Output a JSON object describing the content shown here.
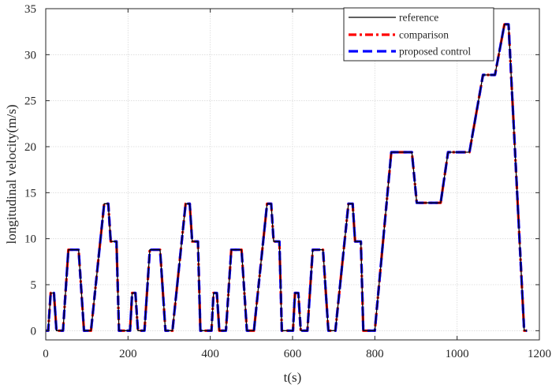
{
  "chart_data": {
    "type": "line",
    "title": "",
    "xlabel": "t(s)",
    "ylabel": "longitudinal velocity(m/s)",
    "xlim": [
      0,
      1200
    ],
    "ylim": [
      -1,
      35
    ],
    "xticks": [
      0,
      200,
      400,
      600,
      800,
      1000,
      1200
    ],
    "yticks": [
      0,
      5,
      10,
      15,
      20,
      25,
      30,
      35
    ],
    "xtick_labels": [
      "0",
      "200",
      "400",
      "600",
      "800",
      "1000",
      "1200"
    ],
    "ytick_labels": [
      "0",
      "5",
      "10",
      "15",
      "20",
      "25",
      "30",
      "35"
    ],
    "grid": true,
    "legend_position": "top-right",
    "x": [
      0,
      6,
      12,
      20,
      26,
      42,
      55,
      58,
      80,
      93,
      110,
      142,
      152,
      158,
      172,
      178,
      188,
      205,
      210,
      218,
      224,
      240,
      253,
      256,
      278,
      291,
      308,
      340,
      350,
      356,
      370,
      376,
      386,
      403,
      408,
      416,
      422,
      438,
      451,
      454,
      476,
      489,
      506,
      538,
      548,
      554,
      568,
      574,
      584,
      601,
      606,
      614,
      620,
      636,
      649,
      652,
      674,
      687,
      704,
      736,
      746,
      752,
      766,
      772,
      782,
      800,
      840,
      842,
      888,
      890,
      902,
      930,
      940,
      960,
      978,
      980,
      1030,
      1063,
      1066,
      1092,
      1115,
      1125,
      1163,
      1170
    ],
    "series": [
      {
        "name": "reference",
        "color": "#000000",
        "dash": "solid",
        "width": 1.3,
        "values": [
          0,
          0,
          4.1,
          4.1,
          0,
          0,
          8.8,
          8.8,
          8.8,
          0,
          0,
          13.8,
          13.8,
          9.7,
          9.7,
          0,
          0,
          0,
          4.1,
          4.1,
          0,
          0,
          8.8,
          8.8,
          8.8,
          0,
          0,
          13.8,
          13.8,
          9.7,
          9.7,
          0,
          0,
          0,
          4.1,
          4.1,
          0,
          0,
          8.8,
          8.8,
          8.8,
          0,
          0,
          13.8,
          13.8,
          9.7,
          9.7,
          0,
          0,
          0,
          4.1,
          4.1,
          0,
          0,
          8.8,
          8.8,
          8.8,
          0,
          0,
          13.8,
          13.8,
          9.7,
          9.7,
          0,
          0,
          0,
          19.4,
          19.4,
          19.4,
          19.4,
          13.9,
          13.9,
          13.9,
          13.9,
          19.4,
          19.4,
          19.4,
          27.8,
          27.8,
          27.8,
          33.3,
          33.3,
          0,
          0
        ]
      },
      {
        "name": "comparison",
        "color": "#ff0000",
        "dash": "dashdot",
        "width": 3.2,
        "values": [
          0,
          0,
          4.1,
          4.1,
          0,
          0,
          8.8,
          8.8,
          8.8,
          0,
          0,
          13.8,
          13.8,
          9.7,
          9.7,
          0,
          0,
          0,
          4.1,
          4.1,
          0,
          0,
          8.8,
          8.8,
          8.8,
          0,
          0,
          13.8,
          13.8,
          9.7,
          9.7,
          0,
          0,
          0,
          4.1,
          4.1,
          0,
          0,
          8.8,
          8.8,
          8.8,
          0,
          0,
          13.8,
          13.8,
          9.7,
          9.7,
          0,
          0,
          0,
          4.1,
          4.1,
          0,
          0,
          8.8,
          8.8,
          8.8,
          0,
          0,
          13.8,
          13.8,
          9.7,
          9.7,
          0,
          0,
          0,
          19.4,
          19.4,
          19.4,
          19.4,
          13.9,
          13.9,
          13.9,
          13.9,
          19.4,
          19.4,
          19.4,
          27.8,
          27.8,
          27.8,
          33.3,
          33.3,
          0,
          0
        ]
      },
      {
        "name": "proposed control",
        "color": "#0000ff",
        "dash": "dashed",
        "width": 3.2,
        "values": [
          0,
          0,
          4.1,
          4.1,
          0,
          0,
          8.8,
          8.8,
          8.8,
          0,
          0,
          13.8,
          13.8,
          9.7,
          9.7,
          0,
          0,
          0,
          4.1,
          4.1,
          0,
          0,
          8.8,
          8.8,
          8.8,
          0,
          0,
          13.8,
          13.8,
          9.7,
          9.7,
          0,
          0,
          0,
          4.1,
          4.1,
          0,
          0,
          8.8,
          8.8,
          8.8,
          0,
          0,
          13.8,
          13.8,
          9.7,
          9.7,
          0,
          0,
          0,
          4.1,
          4.1,
          0,
          0,
          8.8,
          8.8,
          8.8,
          0,
          0,
          13.8,
          13.8,
          9.7,
          9.7,
          0,
          0,
          0,
          19.4,
          19.4,
          19.4,
          19.4,
          13.9,
          13.9,
          13.9,
          13.9,
          19.4,
          19.4,
          19.4,
          27.8,
          27.8,
          27.8,
          33.3,
          33.3,
          0,
          0
        ]
      }
    ]
  }
}
